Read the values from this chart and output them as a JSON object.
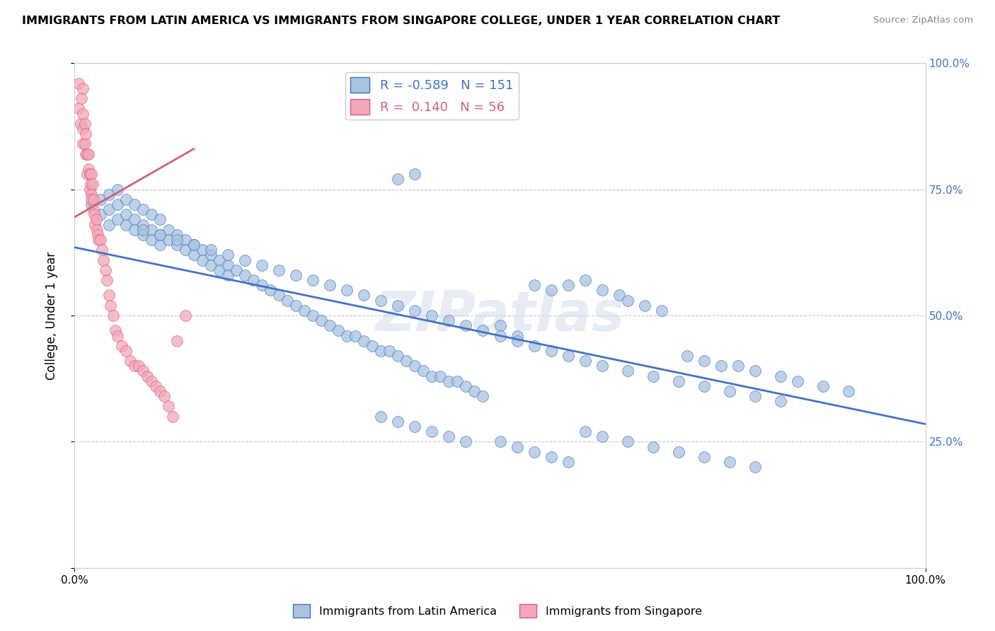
{
  "title": "IMMIGRANTS FROM LATIN AMERICA VS IMMIGRANTS FROM SINGAPORE COLLEGE, UNDER 1 YEAR CORRELATION CHART",
  "source": "Source: ZipAtlas.com",
  "ylabel": "College, Under 1 year",
  "legend_label_blue": "Immigrants from Latin America",
  "legend_label_pink": "Immigrants from Singapore",
  "watermark": "ZIPatlas",
  "blue_color": "#a8c4e0",
  "blue_line_color": "#4472c4",
  "pink_color": "#f4a7b9",
  "pink_line_color": "#d45f7a",
  "background_color": "#ffffff",
  "grid_color": "#c8c8c8",
  "blue_scatter_x": [
    0.02,
    0.03,
    0.03,
    0.04,
    0.04,
    0.04,
    0.05,
    0.05,
    0.05,
    0.06,
    0.06,
    0.06,
    0.07,
    0.07,
    0.07,
    0.08,
    0.08,
    0.08,
    0.09,
    0.09,
    0.09,
    0.1,
    0.1,
    0.1,
    0.11,
    0.11,
    0.12,
    0.12,
    0.13,
    0.13,
    0.14,
    0.14,
    0.15,
    0.15,
    0.16,
    0.16,
    0.17,
    0.17,
    0.18,
    0.18,
    0.19,
    0.2,
    0.21,
    0.22,
    0.23,
    0.24,
    0.25,
    0.26,
    0.27,
    0.28,
    0.29,
    0.3,
    0.31,
    0.32,
    0.33,
    0.34,
    0.35,
    0.36,
    0.37,
    0.38,
    0.39,
    0.4,
    0.41,
    0.42,
    0.43,
    0.44,
    0.45,
    0.46,
    0.47,
    0.48,
    0.5,
    0.52,
    0.54,
    0.56,
    0.58,
    0.6,
    0.62,
    0.64,
    0.65,
    0.67,
    0.69,
    0.72,
    0.74,
    0.76,
    0.78,
    0.8,
    0.83,
    0.85,
    0.88,
    0.91,
    0.08,
    0.1,
    0.12,
    0.14,
    0.16,
    0.18,
    0.2,
    0.22,
    0.24,
    0.26,
    0.28,
    0.3,
    0.32,
    0.34,
    0.36,
    0.38,
    0.4,
    0.42,
    0.44,
    0.46,
    0.48,
    0.5,
    0.52,
    0.54,
    0.56,
    0.58,
    0.6,
    0.62,
    0.65,
    0.68,
    0.71,
    0.74,
    0.77,
    0.8,
    0.83,
    0.5,
    0.52,
    0.54,
    0.56,
    0.58,
    0.36,
    0.38,
    0.4,
    0.42,
    0.44,
    0.46,
    0.6,
    0.62,
    0.65,
    0.68,
    0.71,
    0.74,
    0.77,
    0.8,
    0.38,
    0.4
  ],
  "blue_scatter_y": [
    0.72,
    0.73,
    0.7,
    0.74,
    0.71,
    0.68,
    0.75,
    0.72,
    0.69,
    0.73,
    0.7,
    0.68,
    0.72,
    0.69,
    0.67,
    0.71,
    0.68,
    0.66,
    0.7,
    0.67,
    0.65,
    0.69,
    0.66,
    0.64,
    0.67,
    0.65,
    0.66,
    0.64,
    0.65,
    0.63,
    0.64,
    0.62,
    0.63,
    0.61,
    0.62,
    0.6,
    0.61,
    0.59,
    0.6,
    0.58,
    0.59,
    0.58,
    0.57,
    0.56,
    0.55,
    0.54,
    0.53,
    0.52,
    0.51,
    0.5,
    0.49,
    0.48,
    0.47,
    0.46,
    0.46,
    0.45,
    0.44,
    0.43,
    0.43,
    0.42,
    0.41,
    0.4,
    0.39,
    0.38,
    0.38,
    0.37,
    0.37,
    0.36,
    0.35,
    0.34,
    0.48,
    0.46,
    0.56,
    0.55,
    0.56,
    0.57,
    0.55,
    0.54,
    0.53,
    0.52,
    0.51,
    0.42,
    0.41,
    0.4,
    0.4,
    0.39,
    0.38,
    0.37,
    0.36,
    0.35,
    0.67,
    0.66,
    0.65,
    0.64,
    0.63,
    0.62,
    0.61,
    0.6,
    0.59,
    0.58,
    0.57,
    0.56,
    0.55,
    0.54,
    0.53,
    0.52,
    0.51,
    0.5,
    0.49,
    0.48,
    0.47,
    0.46,
    0.45,
    0.44,
    0.43,
    0.42,
    0.41,
    0.4,
    0.39,
    0.38,
    0.37,
    0.36,
    0.35,
    0.34,
    0.33,
    0.25,
    0.24,
    0.23,
    0.22,
    0.21,
    0.3,
    0.29,
    0.28,
    0.27,
    0.26,
    0.25,
    0.27,
    0.26,
    0.25,
    0.24,
    0.23,
    0.22,
    0.21,
    0.2,
    0.77,
    0.78
  ],
  "pink_scatter_x": [
    0.005,
    0.005,
    0.007,
    0.008,
    0.01,
    0.01,
    0.01,
    0.01,
    0.012,
    0.012,
    0.013,
    0.013,
    0.015,
    0.015,
    0.016,
    0.016,
    0.018,
    0.018,
    0.019,
    0.02,
    0.02,
    0.02,
    0.021,
    0.022,
    0.022,
    0.023,
    0.024,
    0.025,
    0.026,
    0.027,
    0.028,
    0.03,
    0.032,
    0.034,
    0.036,
    0.038,
    0.04,
    0.042,
    0.045,
    0.048,
    0.05,
    0.055,
    0.06,
    0.065,
    0.07,
    0.075,
    0.08,
    0.085,
    0.09,
    0.095,
    0.1,
    0.105,
    0.11,
    0.115,
    0.12,
    0.13
  ],
  "pink_scatter_y": [
    0.96,
    0.91,
    0.88,
    0.93,
    0.95,
    0.9,
    0.87,
    0.84,
    0.88,
    0.84,
    0.82,
    0.86,
    0.82,
    0.78,
    0.82,
    0.79,
    0.78,
    0.75,
    0.76,
    0.74,
    0.78,
    0.73,
    0.76,
    0.73,
    0.71,
    0.7,
    0.68,
    0.69,
    0.67,
    0.66,
    0.65,
    0.65,
    0.63,
    0.61,
    0.59,
    0.57,
    0.54,
    0.52,
    0.5,
    0.47,
    0.46,
    0.44,
    0.43,
    0.41,
    0.4,
    0.4,
    0.39,
    0.38,
    0.37,
    0.36,
    0.35,
    0.34,
    0.32,
    0.3,
    0.45,
    0.5
  ],
  "blue_line_x": [
    0.0,
    1.0
  ],
  "blue_line_y": [
    0.635,
    0.285
  ],
  "pink_line_x": [
    0.0,
    0.14
  ],
  "pink_line_y": [
    0.695,
    0.83
  ],
  "xlim": [
    0.0,
    1.0
  ],
  "ylim": [
    0.0,
    1.0
  ]
}
